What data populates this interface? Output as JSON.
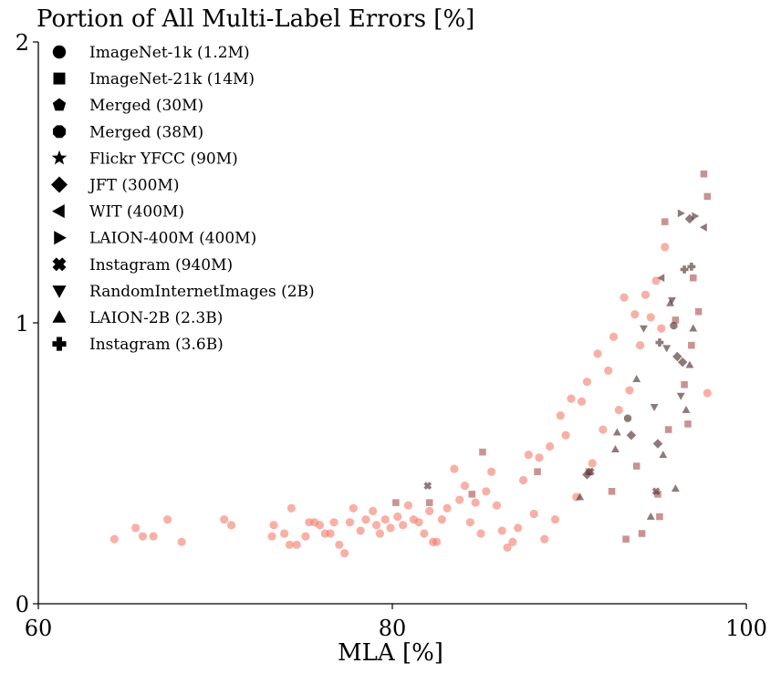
{
  "chart_data": {
    "type": "scatter",
    "title": "Portion of All Multi-Label Errors [%]",
    "xlabel": "MLA [%]",
    "ylabel": "",
    "xlim": [
      60,
      100
    ],
    "ylim": [
      0,
      2
    ],
    "xticks": [
      "60",
      "80",
      "100"
    ],
    "yticks": [
      "0",
      "1",
      "2"
    ],
    "grid": false,
    "legend_position": "top-left",
    "colors": {
      "light": "#f47b6b",
      "dark": "#5a3a3a",
      "medium": "#b06060"
    },
    "legend": [
      {
        "label": "ImageNet-1k (1.2M)",
        "marker": "circle"
      },
      {
        "label": "ImageNet-21k (14M)",
        "marker": "square"
      },
      {
        "label": "Merged (30M)",
        "marker": "pentagon"
      },
      {
        "label": "Merged (38M)",
        "marker": "octagon"
      },
      {
        "label": "Flickr YFCC (90M)",
        "marker": "star"
      },
      {
        "label": "JFT (300M)",
        "marker": "diamond"
      },
      {
        "label": "WIT (400M)",
        "marker": "triangle-left"
      },
      {
        "label": "LAION-400M (400M)",
        "marker": "triangle-right"
      },
      {
        "label": "Instagram (940M)",
        "marker": "x"
      },
      {
        "label": "RandomInternetImages (2B)",
        "marker": "triangle-down"
      },
      {
        "label": "LAION-2B (2.3B)",
        "marker": "triangle-up"
      },
      {
        "label": "Instagram (3.6B)",
        "marker": "plus"
      }
    ],
    "series": [
      {
        "marker": "circle",
        "color": "light",
        "points": [
          [
            64.3,
            0.23
          ],
          [
            65.5,
            0.27
          ],
          [
            65.9,
            0.24
          ],
          [
            66.5,
            0.24
          ],
          [
            67.3,
            0.3
          ],
          [
            68.1,
            0.22
          ],
          [
            70.5,
            0.3
          ],
          [
            70.9,
            0.28
          ],
          [
            73.3,
            0.28
          ],
          [
            73.2,
            0.24
          ],
          [
            73.9,
            0.25
          ],
          [
            74.2,
            0.21
          ],
          [
            74.3,
            0.34
          ],
          [
            74.6,
            0.21
          ],
          [
            75.1,
            0.24
          ],
          [
            75.3,
            0.29
          ],
          [
            75.6,
            0.29
          ],
          [
            75.9,
            0.28
          ],
          [
            76.2,
            0.25
          ],
          [
            76.5,
            0.25
          ],
          [
            76.7,
            0.29
          ],
          [
            77.0,
            0.21
          ],
          [
            77.3,
            0.18
          ],
          [
            77.6,
            0.29
          ],
          [
            77.8,
            0.34
          ],
          [
            78.2,
            0.26
          ],
          [
            78.5,
            0.3
          ],
          [
            78.9,
            0.33
          ],
          [
            79.1,
            0.28
          ],
          [
            79.3,
            0.25
          ],
          [
            79.6,
            0.3
          ],
          [
            79.9,
            0.27
          ],
          [
            80.3,
            0.31
          ],
          [
            80.6,
            0.28
          ],
          [
            80.9,
            0.35
          ],
          [
            81.2,
            0.3
          ],
          [
            81.5,
            0.29
          ],
          [
            81.8,
            0.25
          ],
          [
            82.1,
            0.33
          ],
          [
            82.3,
            0.22
          ],
          [
            82.5,
            0.22
          ],
          [
            82.8,
            0.3
          ],
          [
            83.1,
            0.34
          ],
          [
            83.5,
            0.48
          ],
          [
            83.8,
            0.37
          ],
          [
            84.1,
            0.42
          ],
          [
            84.4,
            0.29
          ],
          [
            84.7,
            0.36
          ],
          [
            85.0,
            0.25
          ],
          [
            85.3,
            0.4
          ],
          [
            85.6,
            0.47
          ],
          [
            85.9,
            0.35
          ],
          [
            86.2,
            0.26
          ],
          [
            86.5,
            0.2
          ],
          [
            86.8,
            0.22
          ],
          [
            87.1,
            0.27
          ],
          [
            87.4,
            0.44
          ],
          [
            87.7,
            0.53
          ],
          [
            88.0,
            0.32
          ],
          [
            88.3,
            0.52
          ],
          [
            88.6,
            0.23
          ],
          [
            88.9,
            0.56
          ],
          [
            89.2,
            0.3
          ],
          [
            89.5,
            0.67
          ],
          [
            89.8,
            0.6
          ],
          [
            90.1,
            0.73
          ],
          [
            90.4,
            0.38
          ],
          [
            90.7,
            0.72
          ],
          [
            91.0,
            0.79
          ],
          [
            91.3,
            0.5
          ],
          [
            91.6,
            0.89
          ],
          [
            91.9,
            0.62
          ],
          [
            92.2,
            0.83
          ],
          [
            92.5,
            0.95
          ],
          [
            92.8,
            0.69
          ],
          [
            93.1,
            1.09
          ],
          [
            93.4,
            0.76
          ],
          [
            93.7,
            1.03
          ],
          [
            94.0,
            0.92
          ],
          [
            94.3,
            1.1
          ],
          [
            94.6,
            1.02
          ],
          [
            94.9,
            1.15
          ],
          [
            95.2,
            0.98
          ],
          [
            95.4,
            1.27
          ],
          [
            97.8,
            0.75
          ]
        ]
      },
      {
        "marker": "square",
        "color": "medium",
        "points": [
          [
            80.2,
            0.36
          ],
          [
            82.1,
            0.36
          ],
          [
            84.5,
            0.39
          ],
          [
            85.1,
            0.54
          ],
          [
            88.2,
            0.47
          ],
          [
            91.1,
            0.47
          ],
          [
            92.4,
            0.4
          ],
          [
            93.8,
            0.49
          ],
          [
            93.2,
            0.23
          ],
          [
            94.1,
            0.25
          ],
          [
            95.0,
            0.39
          ],
          [
            95.4,
            1.36
          ],
          [
            95.6,
            0.62
          ],
          [
            96.0,
            1.01
          ],
          [
            96.5,
            0.78
          ],
          [
            96.9,
            0.92
          ],
          [
            97.0,
            1.16
          ],
          [
            97.3,
            1.04
          ],
          [
            97.6,
            1.53
          ],
          [
            97.8,
            1.45
          ],
          [
            96.7,
            0.64
          ],
          [
            95.1,
            0.31
          ]
        ]
      },
      {
        "marker": "triangle-up",
        "color": "dark",
        "points": [
          [
            90.6,
            0.38
          ],
          [
            92.7,
            0.61
          ],
          [
            93.8,
            0.8
          ],
          [
            94.6,
            0.31
          ],
          [
            95.3,
            0.53
          ],
          [
            96.0,
            0.41
          ],
          [
            96.8,
            0.85
          ],
          [
            97.0,
            0.98
          ],
          [
            95.7,
            1.07
          ],
          [
            96.6,
            0.69
          ],
          [
            92.6,
            0.55
          ]
        ]
      },
      {
        "marker": "triangle-down",
        "color": "dark",
        "points": [
          [
            94.2,
            0.98
          ],
          [
            95.5,
            0.91
          ],
          [
            96.3,
            0.74
          ],
          [
            94.8,
            0.7
          ],
          [
            95.8,
            1.08
          ]
        ]
      },
      {
        "marker": "diamond",
        "color": "dark",
        "points": [
          [
            96.8,
            1.37
          ],
          [
            96.4,
            0.86
          ],
          [
            95.0,
            0.57
          ],
          [
            96.1,
            0.88
          ],
          [
            93.5,
            0.6
          ],
          [
            91.0,
            0.46
          ]
        ]
      },
      {
        "marker": "triangle-right",
        "color": "dark",
        "points": [
          [
            97.1,
            1.38
          ],
          [
            96.3,
            1.39
          ]
        ]
      },
      {
        "marker": "triangle-left",
        "color": "dark",
        "points": [
          [
            97.6,
            1.34
          ],
          [
            95.2,
            1.16
          ]
        ]
      },
      {
        "marker": "plus",
        "color": "dark",
        "points": [
          [
            96.9,
            1.2
          ],
          [
            95.1,
            0.93
          ],
          [
            96.5,
            1.19
          ]
        ]
      },
      {
        "marker": "x",
        "color": "dark",
        "points": [
          [
            82.0,
            0.42
          ],
          [
            91.2,
            0.47
          ],
          [
            94.9,
            0.4
          ]
        ]
      },
      {
        "marker": "octagon",
        "color": "dark",
        "points": [
          [
            95.9,
            0.99
          ],
          [
            93.3,
            0.66
          ]
        ]
      }
    ]
  }
}
